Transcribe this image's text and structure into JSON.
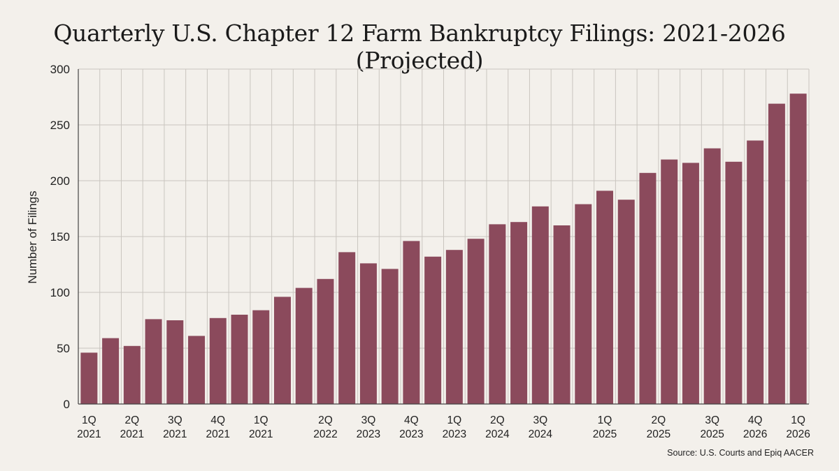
{
  "chart_data": {
    "type": "bar",
    "title": "Quarterly U.S. Chapter 12 Farm Bankruptcy Filings: 2021-2026 (Projected)",
    "xlabel": "",
    "ylabel": "Number of Filings",
    "ylim": [
      0,
      300
    ],
    "yticks": [
      0,
      50,
      100,
      150,
      200,
      250,
      300
    ],
    "grid": true,
    "bar_color": "#8b4a5c",
    "values": [
      46,
      59,
      52,
      76,
      75,
      61,
      77,
      80,
      84,
      96,
      104,
      112,
      136,
      126,
      121,
      146,
      132,
      138,
      148,
      161,
      163,
      177,
      160,
      179,
      191,
      183,
      207,
      219,
      216,
      229,
      217,
      236,
      269,
      278
    ],
    "tick_labels": [
      {
        "bar": 0,
        "line1": "1Q",
        "line2": "2021"
      },
      {
        "bar": 2,
        "line1": "2Q",
        "line2": "2021"
      },
      {
        "bar": 4,
        "line1": "3Q",
        "line2": "2021"
      },
      {
        "bar": 6,
        "line1": "4Q",
        "line2": "2021"
      },
      {
        "bar": 8,
        "line1": "1Q",
        "line2": "2021"
      },
      {
        "bar": 11,
        "line1": "2Q",
        "line2": "2022"
      },
      {
        "bar": 13,
        "line1": "3Q",
        "line2": "2023"
      },
      {
        "bar": 15,
        "line1": "4Q",
        "line2": "2023"
      },
      {
        "bar": 17,
        "line1": "1Q",
        "line2": "2023"
      },
      {
        "bar": 19,
        "line1": "2Q",
        "line2": "2024"
      },
      {
        "bar": 21,
        "line1": "3Q",
        "line2": "2024"
      },
      {
        "bar": 24,
        "line1": "1Q",
        "line2": "2025"
      },
      {
        "bar": 26.5,
        "line1": "2Q",
        "line2": "2025"
      },
      {
        "bar": 29,
        "line1": "3Q",
        "line2": "2025"
      },
      {
        "bar": 31,
        "line1": "4Q",
        "line2": "2026"
      },
      {
        "bar": 33,
        "line1": "1Q",
        "line2": "2026"
      }
    ],
    "source": "Source: U.S. Courts and Epiq AACER"
  }
}
